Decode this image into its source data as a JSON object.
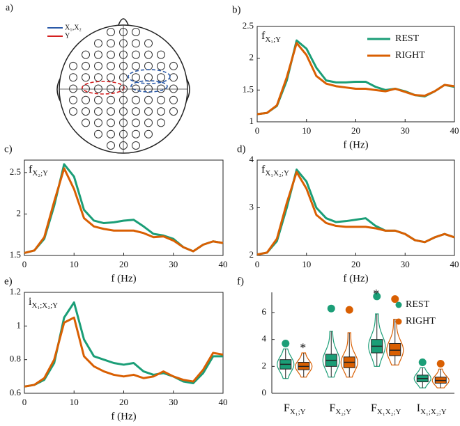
{
  "head_diagram": {
    "panel_label": "a)",
    "legend": [
      {
        "name": "X₁,X₂",
        "color": "#2b5aa8"
      },
      {
        "name": "Y",
        "color": "#d42020"
      }
    ]
  },
  "chart_data": [
    {
      "type": "line",
      "panel_label": "b)",
      "annotation": {
        "symbol": "f",
        "sub": "X₁;Y"
      },
      "xlabel": "f (Hz)",
      "x": [
        0,
        2,
        4,
        6,
        8,
        10,
        12,
        14,
        16,
        18,
        20,
        22,
        24,
        26,
        28,
        30,
        32,
        34,
        36,
        38,
        40
      ],
      "xlim": [
        0,
        40
      ],
      "xticks": [
        0,
        10,
        20,
        30,
        40
      ],
      "ylim": [
        1,
        2.5
      ],
      "yticks": [
        1,
        1.5,
        2,
        2.5
      ],
      "legend": "upper right",
      "series": [
        {
          "name": "REST",
          "color": "#1b9e77",
          "values": [
            1.12,
            1.14,
            1.25,
            1.65,
            2.28,
            2.15,
            1.85,
            1.65,
            1.62,
            1.62,
            1.63,
            1.63,
            1.55,
            1.5,
            1.52,
            1.48,
            1.42,
            1.4,
            1.48,
            1.58,
            1.55
          ]
        },
        {
          "name": "RIGHT",
          "color": "#d95f02",
          "values": [
            1.12,
            1.14,
            1.26,
            1.7,
            2.24,
            2.05,
            1.72,
            1.6,
            1.56,
            1.54,
            1.52,
            1.52,
            1.5,
            1.48,
            1.52,
            1.47,
            1.42,
            1.41,
            1.48,
            1.58,
            1.56
          ]
        }
      ]
    },
    {
      "type": "line",
      "panel_label": "c)",
      "annotation": {
        "symbol": "f",
        "sub": "X₂;Y"
      },
      "xlabel": "f (Hz)",
      "x": [
        0,
        2,
        4,
        6,
        8,
        10,
        12,
        14,
        16,
        18,
        20,
        22,
        24,
        26,
        28,
        30,
        32,
        34,
        36,
        38,
        40
      ],
      "xlim": [
        0,
        40
      ],
      "xticks": [
        0,
        10,
        20,
        30,
        40
      ],
      "ylim": [
        1.5,
        2.65
      ],
      "yticks": [
        1.5,
        2,
        2.5
      ],
      "series": [
        {
          "name": "REST",
          "color": "#1b9e77",
          "values": [
            1.53,
            1.56,
            1.7,
            2.1,
            2.6,
            2.45,
            2.05,
            1.92,
            1.89,
            1.9,
            1.92,
            1.93,
            1.85,
            1.76,
            1.74,
            1.7,
            1.6,
            1.55,
            1.63,
            1.67,
            1.65
          ]
        },
        {
          "name": "RIGHT",
          "color": "#d95f02",
          "values": [
            1.53,
            1.56,
            1.72,
            2.15,
            2.55,
            2.3,
            1.95,
            1.85,
            1.82,
            1.8,
            1.8,
            1.8,
            1.77,
            1.72,
            1.73,
            1.68,
            1.6,
            1.55,
            1.63,
            1.67,
            1.65
          ]
        }
      ]
    },
    {
      "type": "line",
      "panel_label": "d)",
      "annotation": {
        "symbol": "f",
        "sub": "X₁X₂;Y"
      },
      "xlabel": "f (Hz)",
      "x": [
        0,
        2,
        4,
        6,
        8,
        10,
        12,
        14,
        16,
        18,
        20,
        22,
        24,
        26,
        28,
        30,
        32,
        34,
        36,
        38,
        40
      ],
      "xlim": [
        0,
        40
      ],
      "xticks": [
        0,
        10,
        20,
        30,
        40
      ],
      "ylim": [
        2,
        4
      ],
      "yticks": [
        2,
        3,
        4
      ],
      "series": [
        {
          "name": "REST",
          "color": "#1b9e77",
          "values": [
            2.02,
            2.06,
            2.3,
            3.0,
            3.8,
            3.55,
            3.0,
            2.78,
            2.7,
            2.72,
            2.75,
            2.78,
            2.62,
            2.52,
            2.52,
            2.45,
            2.32,
            2.28,
            2.38,
            2.45,
            2.38
          ]
        },
        {
          "name": "RIGHT",
          "color": "#d95f02",
          "values": [
            2.02,
            2.06,
            2.35,
            3.1,
            3.75,
            3.4,
            2.85,
            2.68,
            2.62,
            2.6,
            2.6,
            2.6,
            2.57,
            2.52,
            2.52,
            2.45,
            2.32,
            2.28,
            2.38,
            2.45,
            2.38
          ]
        }
      ]
    },
    {
      "type": "line",
      "panel_label": "e)",
      "annotation": {
        "symbol": "i",
        "sub": "X₁;X₂;Y"
      },
      "xlabel": "f (Hz)",
      "x": [
        0,
        2,
        4,
        6,
        8,
        10,
        12,
        14,
        16,
        18,
        20,
        22,
        24,
        26,
        28,
        30,
        32,
        34,
        36,
        38,
        40
      ],
      "xlim": [
        0,
        40
      ],
      "xticks": [
        0,
        10,
        20,
        30,
        40
      ],
      "ylim": [
        0.6,
        1.2
      ],
      "yticks": [
        0.6,
        0.8,
        1,
        1.2
      ],
      "series": [
        {
          "name": "REST",
          "color": "#1b9e77",
          "values": [
            0.64,
            0.65,
            0.68,
            0.78,
            1.05,
            1.14,
            0.92,
            0.82,
            0.8,
            0.78,
            0.77,
            0.78,
            0.73,
            0.71,
            0.72,
            0.7,
            0.67,
            0.66,
            0.72,
            0.82,
            0.82
          ]
        },
        {
          "name": "RIGHT",
          "color": "#d95f02",
          "values": [
            0.64,
            0.65,
            0.69,
            0.8,
            1.02,
            1.05,
            0.82,
            0.76,
            0.73,
            0.71,
            0.7,
            0.71,
            0.69,
            0.7,
            0.73,
            0.7,
            0.68,
            0.67,
            0.74,
            0.84,
            0.83
          ]
        }
      ]
    },
    {
      "type": "violin",
      "panel_label": "f)",
      "categories": [
        {
          "symbol": "F",
          "sub": "X₁;Y"
        },
        {
          "symbol": "F",
          "sub": "X₂;Y"
        },
        {
          "symbol": "F",
          "sub": "X₁X₂;Y"
        },
        {
          "symbol": "I",
          "sub": "X₁;X₂;Y"
        }
      ],
      "significance_labels": [
        "*",
        null,
        "*",
        null
      ],
      "ylim": [
        0,
        7.5
      ],
      "yticks": [
        0,
        2,
        4,
        6
      ],
      "legend": "upper right",
      "series": [
        {
          "name": "REST",
          "color": "#1b9e77",
          "min": [
            1.1,
            1.2,
            2.0,
            0.4
          ],
          "q1": [
            1.8,
            2.0,
            3.0,
            0.85
          ],
          "median": [
            2.15,
            2.45,
            3.5,
            1.1
          ],
          "q3": [
            2.5,
            2.9,
            4.0,
            1.35
          ],
          "max": [
            3.3,
            4.6,
            5.9,
            1.9
          ],
          "outlier": [
            3.7,
            6.3,
            7.2,
            2.3
          ]
        },
        {
          "name": "RIGHT",
          "color": "#d95f02",
          "min": [
            1.2,
            1.2,
            2.1,
            0.4
          ],
          "q1": [
            1.75,
            1.9,
            2.8,
            0.75
          ],
          "median": [
            2.0,
            2.3,
            3.2,
            0.95
          ],
          "q3": [
            2.3,
            2.7,
            3.7,
            1.2
          ],
          "max": [
            3.0,
            4.5,
            5.5,
            1.8
          ],
          "outlier": [
            null,
            6.2,
            7.0,
            2.2
          ]
        }
      ]
    }
  ]
}
